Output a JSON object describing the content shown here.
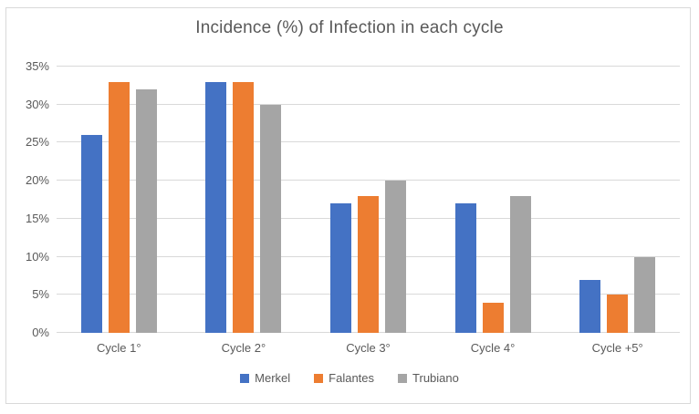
{
  "chart_data": {
    "type": "bar",
    "title": "Incidence (%) of Infection in each cycle",
    "categories": [
      "Cycle 1°",
      "Cycle 2°",
      "Cycle 3°",
      "Cycle 4°",
      "Cycle +5°"
    ],
    "series": [
      {
        "name": "Merkel",
        "color": "#4472C4",
        "values": [
          26,
          33,
          17,
          17,
          7
        ]
      },
      {
        "name": "Falantes",
        "color": "#ED7D31",
        "values": [
          33,
          33,
          18,
          4,
          5
        ]
      },
      {
        "name": "Trubiano",
        "color": "#A5A5A5",
        "values": [
          32,
          30,
          20,
          18,
          10
        ]
      }
    ],
    "yticks": [
      "0%",
      "5%",
      "10%",
      "15%",
      "20%",
      "25%",
      "30%",
      "35%"
    ],
    "ylim": [
      0,
      35
    ],
    "xlabel": "",
    "ylabel": "",
    "grid": true,
    "legend_position": "bottom",
    "colors": {
      "text": "#595959",
      "gridline": "#D9D9D9",
      "border": "#D9D9D9",
      "background": "#FFFFFF"
    }
  }
}
